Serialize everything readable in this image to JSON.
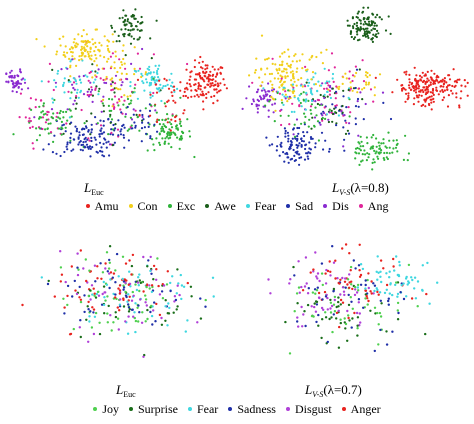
{
  "chart_data": [
    {
      "type": "scatter",
      "title": "",
      "panel_label": "L",
      "panel_label_sub": "Euc",
      "panel_label_suffix": "",
      "xlabel": "",
      "ylabel": "",
      "grid": false,
      "axes_visible": false,
      "series": [
        {
          "name": "Amu",
          "color": "#e8231f",
          "clusters": [
            [
              0.88,
              0.55,
              0.07,
              0.1,
              120
            ],
            [
              0.72,
              0.45,
              0.1,
              0.18,
              40
            ]
          ]
        },
        {
          "name": "Con",
          "color": "#f2cf1a",
          "clusters": [
            [
              0.35,
              0.75,
              0.1,
              0.08,
              110
            ],
            [
              0.5,
              0.6,
              0.12,
              0.12,
              40
            ]
          ]
        },
        {
          "name": "Exc",
          "color": "#2fb33a",
          "clusters": [
            [
              0.72,
              0.25,
              0.08,
              0.09,
              80
            ],
            [
              0.2,
              0.3,
              0.1,
              0.1,
              50
            ],
            [
              0.55,
              0.4,
              0.15,
              0.15,
              40
            ]
          ]
        },
        {
          "name": "Awe",
          "color": "#1a5e1a",
          "clusters": [
            [
              0.55,
              0.88,
              0.06,
              0.07,
              70
            ],
            [
              0.4,
              0.45,
              0.2,
              0.2,
              30
            ]
          ]
        },
        {
          "name": "Fear",
          "color": "#3fd7e0",
          "clusters": [
            [
              0.65,
              0.55,
              0.08,
              0.1,
              70
            ],
            [
              0.3,
              0.55,
              0.12,
              0.12,
              40
            ]
          ]
        },
        {
          "name": "Sad",
          "color": "#1f2fa8",
          "clusters": [
            [
              0.35,
              0.22,
              0.12,
              0.09,
              110
            ],
            [
              0.55,
              0.3,
              0.1,
              0.1,
              40
            ]
          ]
        },
        {
          "name": "Dis",
          "color": "#8a2bd0",
          "clusters": [
            [
              0.05,
              0.55,
              0.04,
              0.06,
              50
            ],
            [
              0.4,
              0.5,
              0.2,
              0.2,
              40
            ]
          ]
        },
        {
          "name": "Ang",
          "color": "#e0259a",
          "clusters": [
            [
              0.45,
              0.5,
              0.22,
              0.22,
              70
            ],
            [
              0.15,
              0.35,
              0.08,
              0.1,
              30
            ]
          ]
        }
      ]
    },
    {
      "type": "scatter",
      "title": "",
      "panel_label": "L",
      "panel_label_sub": "V-S",
      "panel_label_suffix": "(λ=0.8)",
      "xlabel": "",
      "ylabel": "",
      "grid": false,
      "axes_visible": false,
      "series": [
        {
          "name": "Amu",
          "color": "#e8231f",
          "clusters": [
            [
              0.82,
              0.52,
              0.12,
              0.08,
              200
            ]
          ]
        },
        {
          "name": "Con",
          "color": "#f2cf1a",
          "clusters": [
            [
              0.2,
              0.6,
              0.12,
              0.12,
              120
            ],
            [
              0.5,
              0.55,
              0.1,
              0.1,
              30
            ]
          ]
        },
        {
          "name": "Exc",
          "color": "#2fb33a",
          "clusters": [
            [
              0.6,
              0.15,
              0.08,
              0.07,
              80
            ],
            [
              0.3,
              0.4,
              0.12,
              0.12,
              40
            ]
          ]
        },
        {
          "name": "Awe",
          "color": "#1a5e1a",
          "clusters": [
            [
              0.55,
              0.88,
              0.07,
              0.08,
              110
            ],
            [
              0.4,
              0.4,
              0.15,
              0.15,
              30
            ]
          ]
        },
        {
          "name": "Fear",
          "color": "#3fd7e0",
          "clusters": [
            [
              0.3,
              0.5,
              0.12,
              0.12,
              60
            ]
          ]
        },
        {
          "name": "Sad",
          "color": "#1f2fa8",
          "clusters": [
            [
              0.25,
              0.18,
              0.08,
              0.09,
              100
            ],
            [
              0.45,
              0.35,
              0.12,
              0.12,
              30
            ]
          ]
        },
        {
          "name": "Dis",
          "color": "#8a2bd0",
          "clusters": [
            [
              0.1,
              0.45,
              0.05,
              0.08,
              50
            ],
            [
              0.4,
              0.4,
              0.15,
              0.15,
              30
            ]
          ]
        },
        {
          "name": "Ang",
          "color": "#e0259a",
          "clusters": [
            [
              0.4,
              0.5,
              0.2,
              0.18,
              60
            ]
          ]
        }
      ]
    },
    {
      "type": "scatter",
      "title": "",
      "panel_label": "L",
      "panel_label_sub": "Euc",
      "panel_label_suffix": "",
      "xlabel": "",
      "ylabel": "",
      "grid": false,
      "axes_visible": false,
      "series": [
        {
          "name": "Joy",
          "color": "#4fd04f",
          "clusters": [
            [
              0.5,
              0.5,
              0.24,
              0.22,
              60
            ]
          ]
        },
        {
          "name": "Surprise",
          "color": "#1a6e1a",
          "clusters": [
            [
              0.5,
              0.5,
              0.24,
              0.22,
              45
            ]
          ]
        },
        {
          "name": "Fear",
          "color": "#3fd7e0",
          "clusters": [
            [
              0.55,
              0.5,
              0.24,
              0.22,
              55
            ]
          ]
        },
        {
          "name": "Sadness",
          "color": "#1f2fa8",
          "clusters": [
            [
              0.5,
              0.5,
              0.24,
              0.22,
              50
            ]
          ]
        },
        {
          "name": "Disgust",
          "color": "#b040d8",
          "clusters": [
            [
              0.5,
              0.5,
              0.24,
              0.22,
              50
            ]
          ]
        },
        {
          "name": "Anger",
          "color": "#e8231f",
          "clusters": [
            [
              0.45,
              0.55,
              0.24,
              0.22,
              60
            ]
          ]
        }
      ]
    },
    {
      "type": "scatter",
      "title": "",
      "panel_label": "L",
      "panel_label_sub": "V-S",
      "panel_label_suffix": "(λ=0.7)",
      "xlabel": "",
      "ylabel": "",
      "grid": false,
      "axes_visible": false,
      "series": [
        {
          "name": "Joy",
          "color": "#4fd04f",
          "clusters": [
            [
              0.5,
              0.5,
              0.24,
              0.22,
              50
            ]
          ]
        },
        {
          "name": "Surprise",
          "color": "#1a6e1a",
          "clusters": [
            [
              0.45,
              0.45,
              0.24,
              0.22,
              45
            ]
          ]
        },
        {
          "name": "Fear",
          "color": "#3fd7e0",
          "clusters": [
            [
              0.72,
              0.68,
              0.14,
              0.14,
              55
            ]
          ]
        },
        {
          "name": "Sadness",
          "color": "#1f2fa8",
          "clusters": [
            [
              0.5,
              0.5,
              0.24,
              0.22,
              45
            ]
          ]
        },
        {
          "name": "Disgust",
          "color": "#b040d8",
          "clusters": [
            [
              0.35,
              0.55,
              0.22,
              0.2,
              60
            ]
          ]
        },
        {
          "name": "Anger",
          "color": "#e8231f",
          "clusters": [
            [
              0.5,
              0.6,
              0.22,
              0.2,
              55
            ]
          ]
        }
      ]
    }
  ],
  "legends": [
    {
      "items": [
        {
          "label": "Amu",
          "color": "#e8231f"
        },
        {
          "label": "Con",
          "color": "#f2cf1a"
        },
        {
          "label": "Exc",
          "color": "#2fb33a"
        },
        {
          "label": "Awe",
          "color": "#1a5e1a"
        },
        {
          "label": "Fear",
          "color": "#3fd7e0"
        },
        {
          "label": "Sad",
          "color": "#1f2fa8"
        },
        {
          "label": "Dis",
          "color": "#8a2bd0"
        },
        {
          "label": "Ang",
          "color": "#e0259a"
        }
      ]
    },
    {
      "items": [
        {
          "label": "Joy",
          "color": "#4fd04f"
        },
        {
          "label": "Surprise",
          "color": "#1a6e1a"
        },
        {
          "label": "Fear",
          "color": "#3fd7e0"
        },
        {
          "label": "Sadness",
          "color": "#1f2fa8"
        },
        {
          "label": "Disgust",
          "color": "#b040d8"
        },
        {
          "label": "Anger",
          "color": "#e8231f"
        }
      ]
    }
  ]
}
